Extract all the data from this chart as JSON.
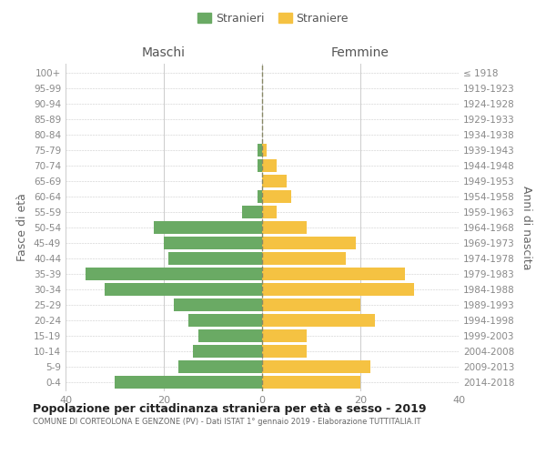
{
  "age_groups": [
    "0-4",
    "5-9",
    "10-14",
    "15-19",
    "20-24",
    "25-29",
    "30-34",
    "35-39",
    "40-44",
    "45-49",
    "50-54",
    "55-59",
    "60-64",
    "65-69",
    "70-74",
    "75-79",
    "80-84",
    "85-89",
    "90-94",
    "95-99",
    "100+"
  ],
  "birth_years": [
    "2014-2018",
    "2009-2013",
    "2004-2008",
    "1999-2003",
    "1994-1998",
    "1989-1993",
    "1984-1988",
    "1979-1983",
    "1974-1978",
    "1969-1973",
    "1964-1968",
    "1959-1963",
    "1954-1958",
    "1949-1953",
    "1944-1948",
    "1939-1943",
    "1934-1938",
    "1929-1933",
    "1924-1928",
    "1919-1923",
    "≤ 1918"
  ],
  "maschi": [
    30,
    17,
    14,
    13,
    15,
    18,
    32,
    36,
    19,
    20,
    22,
    4,
    1,
    0,
    1,
    1,
    0,
    0,
    0,
    0,
    0
  ],
  "femmine": [
    20,
    22,
    9,
    9,
    23,
    20,
    31,
    29,
    17,
    19,
    9,
    3,
    6,
    5,
    3,
    1,
    0,
    0,
    0,
    0,
    0
  ],
  "maschi_color": "#6aaa64",
  "femmine_color": "#f5c242",
  "title": "Popolazione per cittadinanza straniera per età e sesso - 2019",
  "subtitle": "COMUNE DI CORTEOLONA E GENZONE (PV) - Dati ISTAT 1° gennaio 2019 - Elaborazione TUTTITALIA.IT",
  "xlabel_left": "Maschi",
  "xlabel_right": "Femmine",
  "ylabel_left": "Fasce di età",
  "ylabel_right": "Anni di nascita",
  "legend_maschi": "Stranieri",
  "legend_femmine": "Straniere",
  "xlim": 40,
  "background_color": "#ffffff",
  "grid_color": "#cccccc",
  "bar_height": 0.8
}
